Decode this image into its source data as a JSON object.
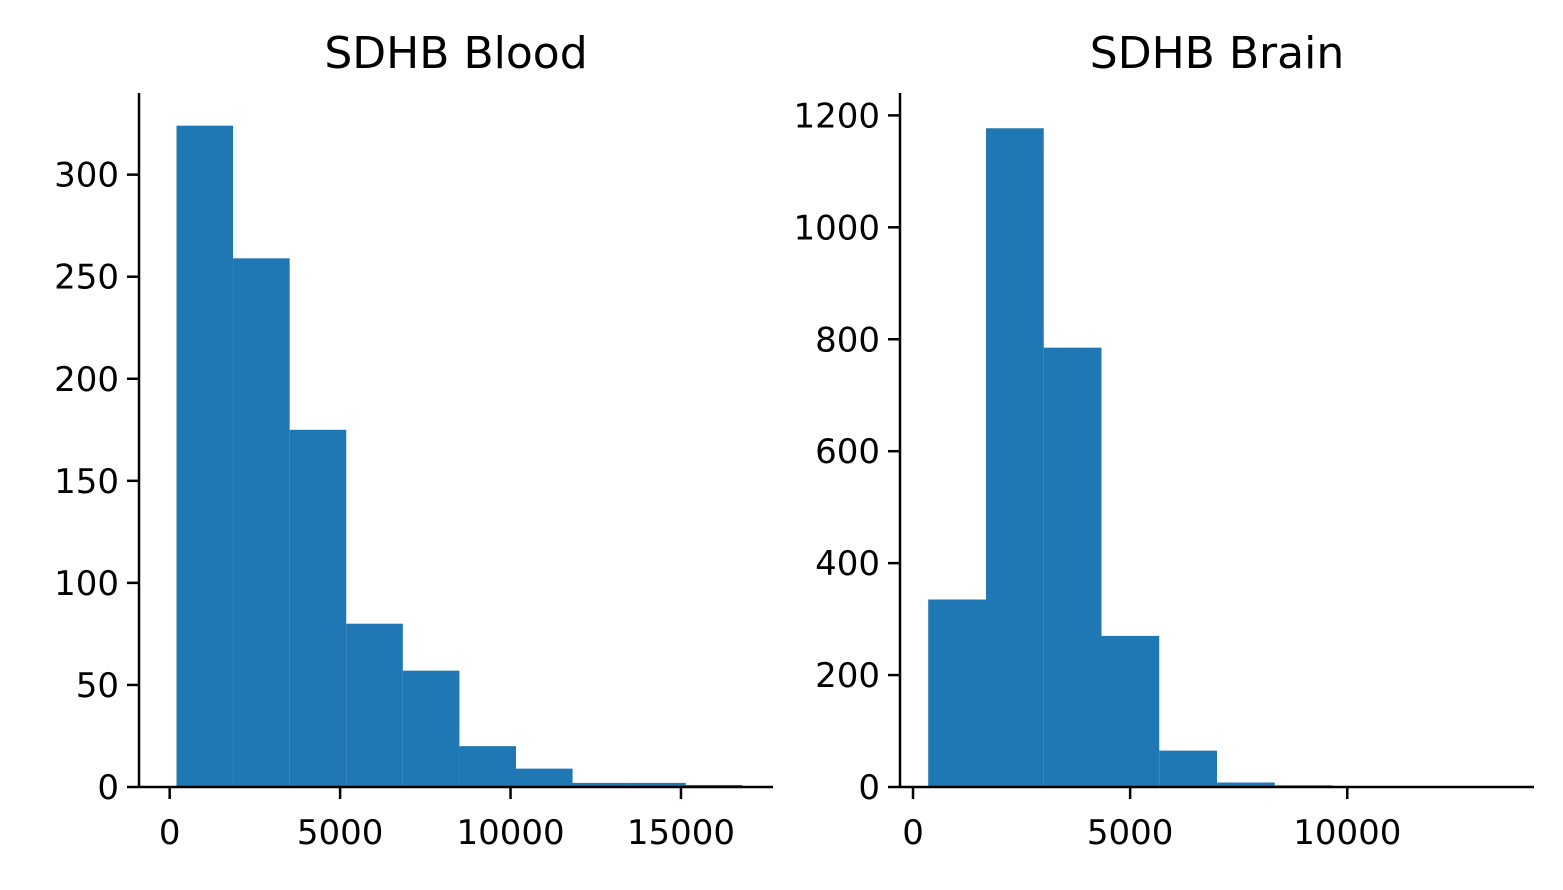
{
  "chart_data": [
    {
      "type": "bar",
      "subtype": "histogram",
      "title": "SDHB Blood",
      "xlabel": "",
      "ylabel": "",
      "bin_edges": [
        200,
        1860,
        3520,
        5180,
        6840,
        8500,
        10160,
        11820,
        13480,
        15140,
        16800
      ],
      "values": [
        324,
        259,
        175,
        80,
        57,
        20,
        9,
        2,
        2,
        1
      ],
      "xlim": [
        -900,
        17700
      ],
      "ylim": [
        0,
        340
      ],
      "x_ticks": [
        0,
        5000,
        10000,
        15000
      ],
      "y_ticks": [
        0,
        50,
        100,
        150,
        200,
        250,
        300
      ],
      "grid": false,
      "color": "#1f77b4"
    },
    {
      "type": "bar",
      "subtype": "histogram",
      "title": "SDHB Brain",
      "xlabel": "",
      "ylabel": "",
      "bin_edges": [
        350,
        1680,
        3010,
        4340,
        5670,
        7000,
        8330,
        9660,
        10990,
        12320,
        13650
      ],
      "values": [
        335,
        1177,
        785,
        270,
        65,
        8,
        3,
        1,
        1,
        1
      ],
      "xlim": [
        -300,
        14300
      ],
      "ylim": [
        0,
        1240
      ],
      "x_ticks": [
        0,
        5000,
        10000
      ],
      "y_ticks": [
        0,
        200,
        400,
        600,
        800,
        1000,
        1200
      ],
      "grid": false,
      "color": "#1f77b4"
    }
  ]
}
